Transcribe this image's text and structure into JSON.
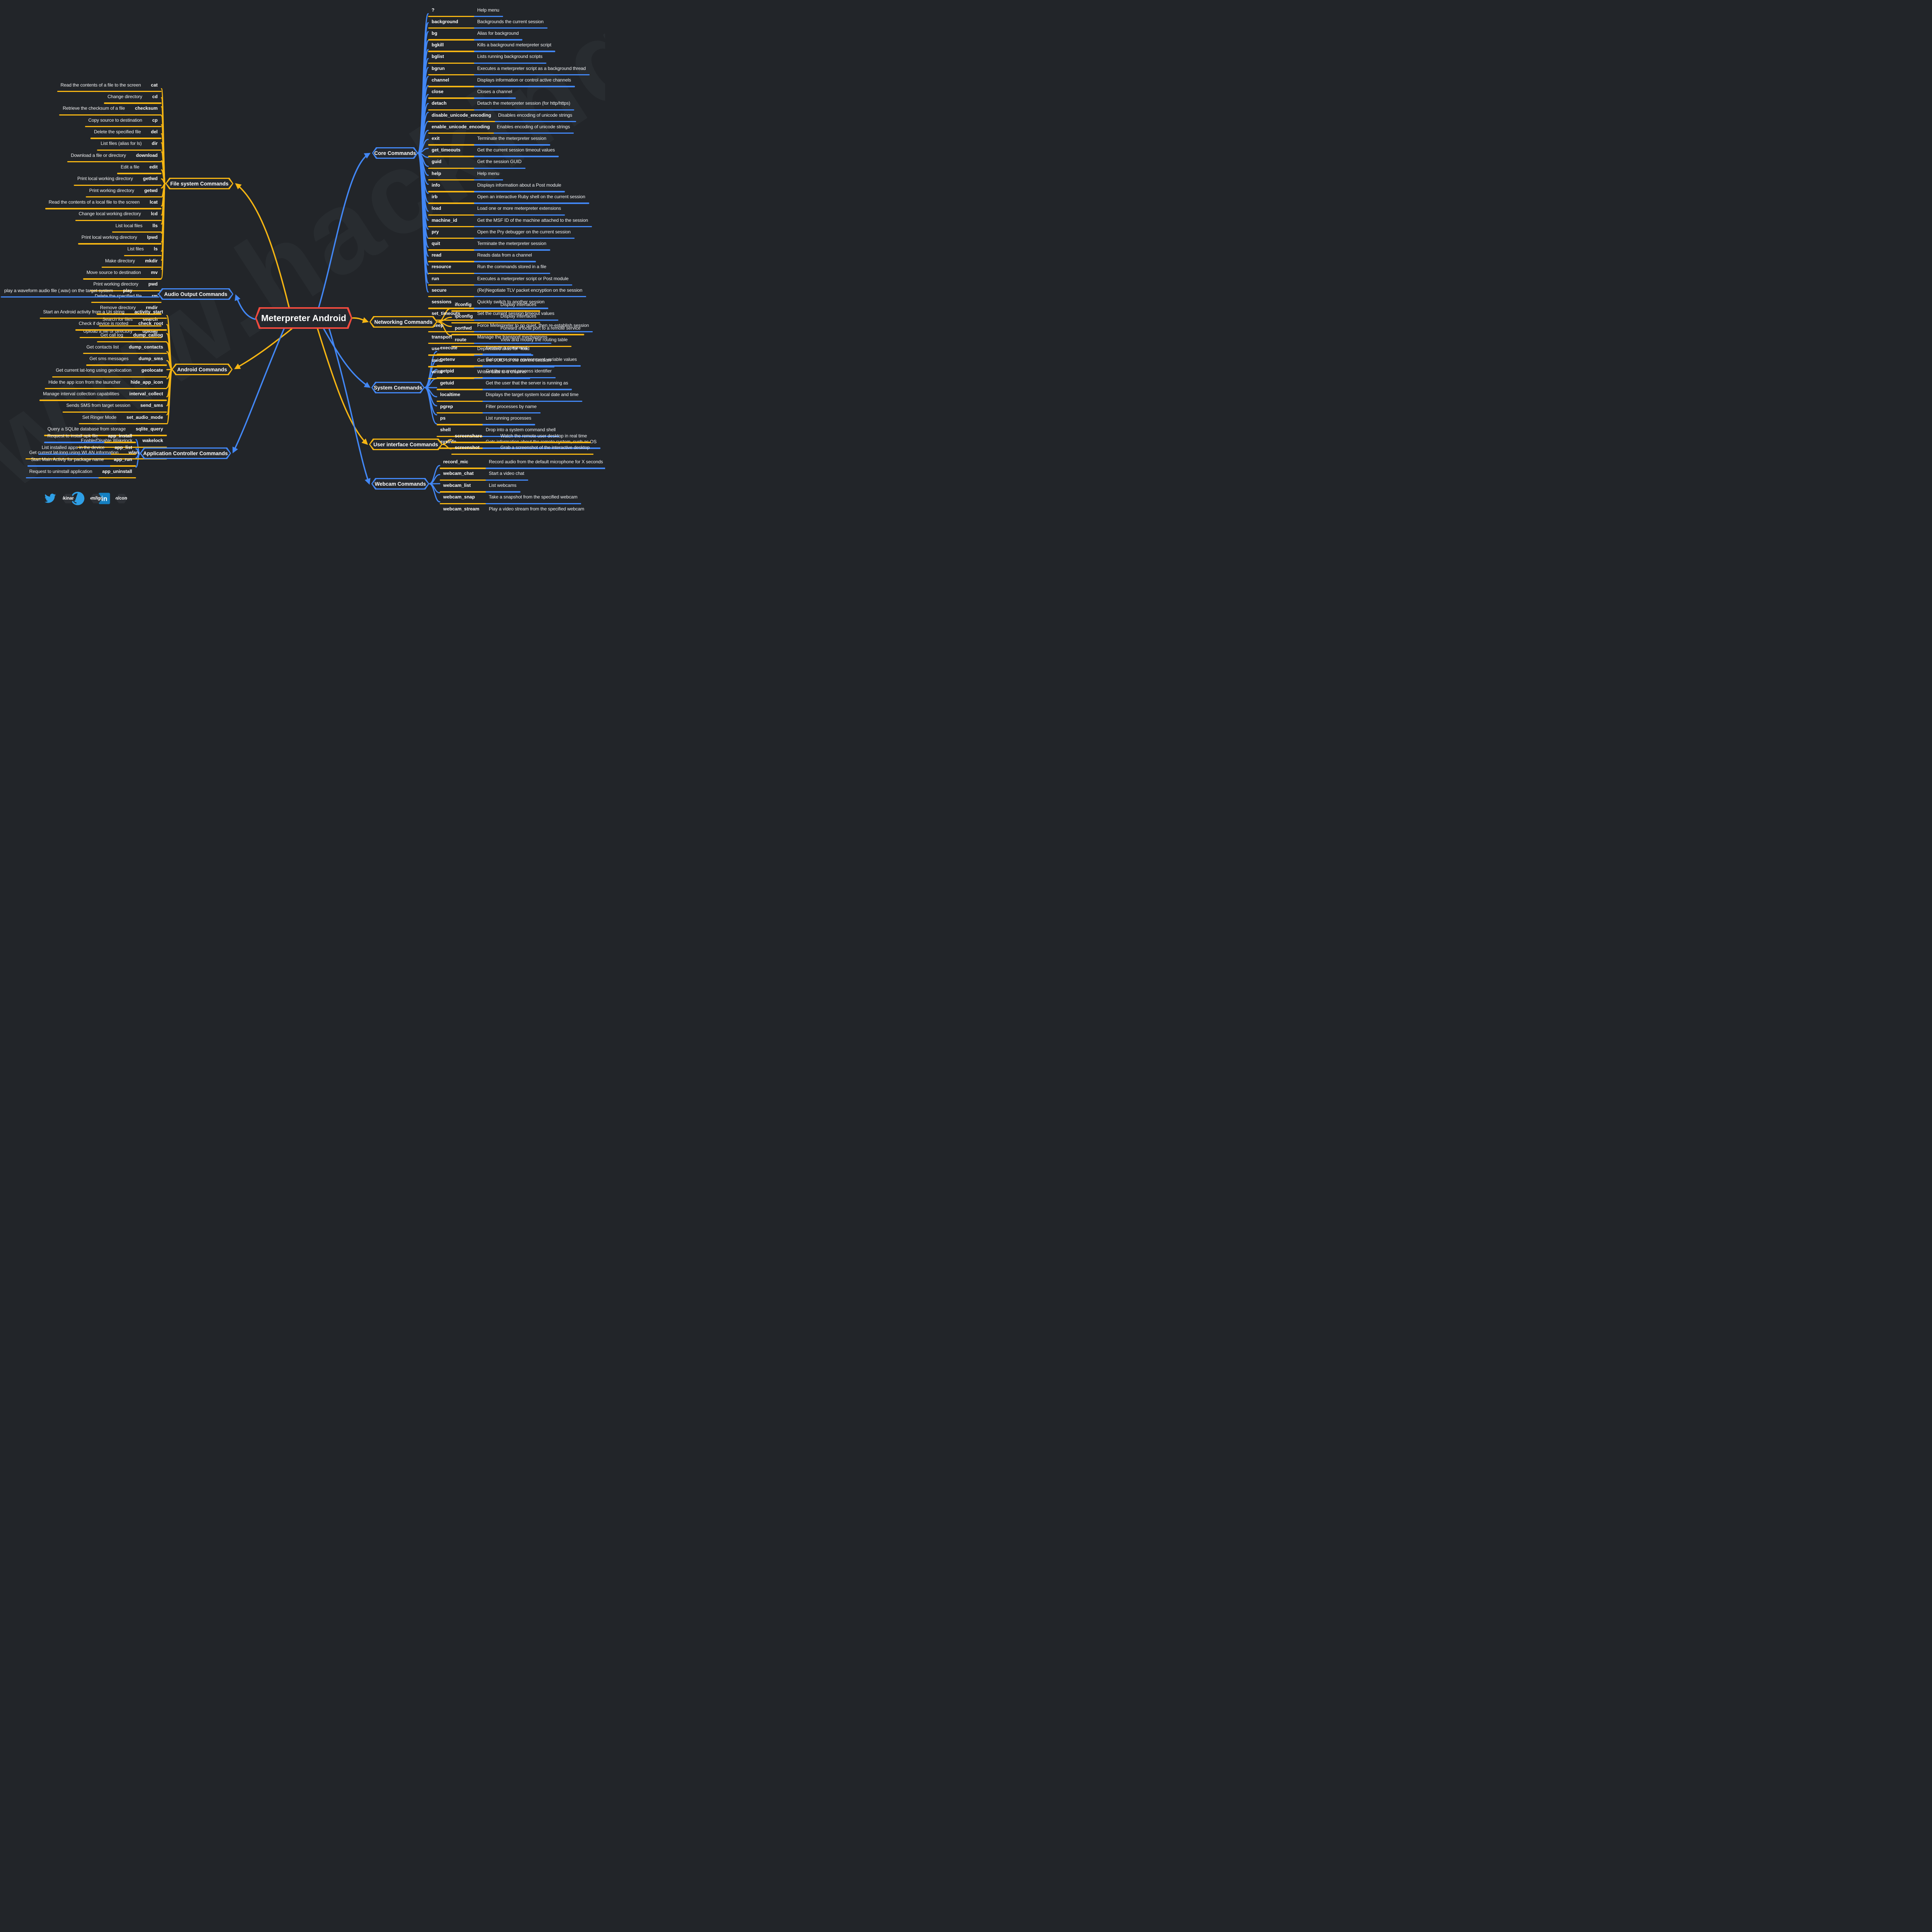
{
  "center": {
    "title": "Meterpreter Android"
  },
  "watermark": "www.hackingarticles",
  "colors": {
    "yellow": "#f5b513",
    "blue": "#4287f5",
    "red": "#f04a3e"
  },
  "branches": [
    {
      "id": "core",
      "label": "Core Commands",
      "items": [
        {
          "cmd": "?",
          "desc": "Help menu"
        },
        {
          "cmd": "background",
          "desc": "Backgrounds the current session"
        },
        {
          "cmd": "bg",
          "desc": "Alias for background"
        },
        {
          "cmd": "bgkill",
          "desc": "Kills a background meterpreter script"
        },
        {
          "cmd": "bglist",
          "desc": "Lists running background scripts"
        },
        {
          "cmd": "bgrun",
          "desc": "Executes a meterpreter script as a background thread"
        },
        {
          "cmd": "channel",
          "desc": "Displays information or control active channels"
        },
        {
          "cmd": "close",
          "desc": "Closes a channel"
        },
        {
          "cmd": "detach",
          "desc": "Detach the meterpreter session (for http/https)"
        },
        {
          "cmd": "disable_unicode_encoding",
          "desc": "Disables encoding of unicode strings"
        },
        {
          "cmd": "enable_unicode_encoding",
          "desc": "Enables encoding of unicode strings"
        },
        {
          "cmd": "exit",
          "desc": "Terminate the meterpreter session"
        },
        {
          "cmd": "get_timeouts",
          "desc": "Get the current session timeout values"
        },
        {
          "cmd": "guid",
          "desc": "Get the session GUID"
        },
        {
          "cmd": "help",
          "desc": "Help menu"
        },
        {
          "cmd": "info",
          "desc": "Displays information about a Post module"
        },
        {
          "cmd": "irb",
          "desc": "Open an interactive Ruby shell on the current session"
        },
        {
          "cmd": "load",
          "desc": "Load one or more meterpreter extensions"
        },
        {
          "cmd": "machine_id",
          "desc": "Get the MSF ID of the machine attached to the session"
        },
        {
          "cmd": "pry",
          "desc": "Open the Pry debugger on the current session"
        },
        {
          "cmd": "quit",
          "desc": "Terminate the meterpreter session"
        },
        {
          "cmd": "read",
          "desc": "Reads data from a channel"
        },
        {
          "cmd": "resource",
          "desc": "Run the commands stored in a file"
        },
        {
          "cmd": "run",
          "desc": "Executes a meterpreter script or Post module"
        },
        {
          "cmd": "secure",
          "desc": "(Re)Negotiate TLV packet encryption on the session"
        },
        {
          "cmd": "sessions",
          "desc": "Quickly switch to another session"
        },
        {
          "cmd": "set_timeouts",
          "desc": "Set the current session timeout values"
        },
        {
          "cmd": "sleep",
          "desc": "Force Meterpreter to go quiet, then re-establish session"
        },
        {
          "cmd": "transport",
          "desc": "Manage the transport mechanisms"
        },
        {
          "cmd": "use",
          "desc": "Deprecated alias for \"load"
        },
        {
          "cmd": "uuid",
          "desc": "Get the UUID for the current session"
        },
        {
          "cmd": "write",
          "desc": "Writes data to a channel"
        }
      ]
    },
    {
      "id": "filesystem",
      "label": "File system Commands",
      "items": [
        {
          "cmd": "cat",
          "desc": "Read the contents of a file to the screen"
        },
        {
          "cmd": "cd",
          "desc": "Change directory"
        },
        {
          "cmd": "checksum",
          "desc": "Retrieve the checksum of a file"
        },
        {
          "cmd": "cp",
          "desc": "Copy source to destination"
        },
        {
          "cmd": "del",
          "desc": "Delete the specified file"
        },
        {
          "cmd": "dir",
          "desc": "List files (alias for ls)"
        },
        {
          "cmd": "download",
          "desc": "Download a file or directory"
        },
        {
          "cmd": "edit",
          "desc": "Edit a file"
        },
        {
          "cmd": "getlwd",
          "desc": "Print local working directory"
        },
        {
          "cmd": "getwd",
          "desc": "Print working directory"
        },
        {
          "cmd": "lcat",
          "desc": "Read the contents of a local file to the screen"
        },
        {
          "cmd": "lcd",
          "desc": "Change local working directory"
        },
        {
          "cmd": "lls",
          "desc": "List local files"
        },
        {
          "cmd": "lpwd",
          "desc": "Print local working directory"
        },
        {
          "cmd": "ls",
          "desc": "List files"
        },
        {
          "cmd": "mkdir",
          "desc": "Make directory"
        },
        {
          "cmd": "mv",
          "desc": "Move source to destination"
        },
        {
          "cmd": "pwd",
          "desc": "Print working directory"
        },
        {
          "cmd": "rm",
          "desc": "Delete the specified file"
        },
        {
          "cmd": "rmdir",
          "desc": "Remove directory"
        },
        {
          "cmd": "search",
          "desc": "Search for files"
        },
        {
          "cmd": "upload",
          "desc": "Upload a file or directory"
        }
      ]
    },
    {
      "id": "audio",
      "label": "Audio Output Commands",
      "items": [
        {
          "cmd": "play",
          "desc": "play a waveform audio file (.wav) on the target system"
        }
      ]
    },
    {
      "id": "android",
      "label": "Android Commands",
      "items": [
        {
          "cmd": "activity_start",
          "desc": "Start an Android activity from a Uri string"
        },
        {
          "cmd": "check_root",
          "desc": "Check if device is rooted"
        },
        {
          "cmd": "dump_calllog",
          "desc": "Get call log"
        },
        {
          "cmd": "dump_contacts",
          "desc": "Get contacts list"
        },
        {
          "cmd": "dump_sms",
          "desc": "Get sms messages"
        },
        {
          "cmd": "geolocate",
          "desc": "Get current lat-long using geolocation"
        },
        {
          "cmd": "hide_app_icon",
          "desc": "Hide the app icon from the launcher"
        },
        {
          "cmd": "interval_collect",
          "desc": "Manage interval collection capabilities"
        },
        {
          "cmd": "send_sms",
          "desc": "Sends SMS from target session"
        },
        {
          "cmd": "set_audio_mode",
          "desc": "Set Ringer Mode"
        },
        {
          "cmd": "sqlite_query",
          "desc": "Query a SQLite database from storage"
        },
        {
          "cmd": "wakelock",
          "desc": "Enable/Disable Wakelock"
        },
        {
          "cmd": "wlan_geolocate",
          "desc": "Get current lat-long using WLAN information"
        }
      ]
    },
    {
      "id": "appcontroller",
      "label": "Application Controller Commands",
      "items": [
        {
          "cmd": "app_install",
          "desc": "Request to install apk file"
        },
        {
          "cmd": "app_list",
          "desc": "List installed apps in the device"
        },
        {
          "cmd": "app_run",
          "desc": "Start Main Activty for package name"
        },
        {
          "cmd": "app_uninstall",
          "desc": "Request to uninstall application"
        }
      ]
    },
    {
      "id": "networking",
      "label": "Networking Commands",
      "items": [
        {
          "cmd": "ifconfig",
          "desc": "Display interfaces"
        },
        {
          "cmd": "ipconfig",
          "desc": "Display interfaces"
        },
        {
          "cmd": "portfwd",
          "desc": "Forward a local port to a remote service"
        },
        {
          "cmd": "route",
          "desc": "View and modify the routing table"
        }
      ]
    },
    {
      "id": "system",
      "label": "System Commands",
      "items": [
        {
          "cmd": "execute",
          "desc": "Execute a command"
        },
        {
          "cmd": "getenv",
          "desc": "Get one or more environment variable values"
        },
        {
          "cmd": "getpid",
          "desc": "Get the current process identifier"
        },
        {
          "cmd": "getuid",
          "desc": "Get the user that the server is running as"
        },
        {
          "cmd": "localtime",
          "desc": "Displays the target system local date and time"
        },
        {
          "cmd": "pgrep",
          "desc": "Filter processes by name"
        },
        {
          "cmd": "ps",
          "desc": "List running processes"
        },
        {
          "cmd": "shell",
          "desc": "Drop into a system command shell"
        },
        {
          "cmd": "sysinfo",
          "desc": "Gets information about the remote system, such as OS"
        }
      ]
    },
    {
      "id": "ui",
      "label": "User interface Commands",
      "items": [
        {
          "cmd": "screenshare",
          "desc": "Watch the remote user desktop in real time"
        },
        {
          "cmd": "screenshot",
          "desc": "Grab a screenshot of the interactive desktop"
        }
      ]
    },
    {
      "id": "webcam",
      "label": "Webcam Commands",
      "items": [
        {
          "cmd": "record_mic",
          "desc": "Record audio from the default microphone for X seconds"
        },
        {
          "cmd": "webcam_chat",
          "desc": "Start a video chat"
        },
        {
          "cmd": "webcam_list",
          "desc": "List webcams"
        },
        {
          "cmd": "webcam_snap",
          "desc": "Take a snapshot from the specified webcam"
        },
        {
          "cmd": "webcam_stream",
          "desc": "Play a video stream from the specified webcam"
        }
      ]
    },
    {
      "id": "center",
      "label": "Meterpreter Android",
      "items": []
    }
  ],
  "footer": {
    "twitter_handle": "@hackinarticles",
    "github_url": "https://github.com/Ignitetechnologies",
    "linkedin_url": "https://in.linkedin.com/company/hackingarticles"
  }
}
